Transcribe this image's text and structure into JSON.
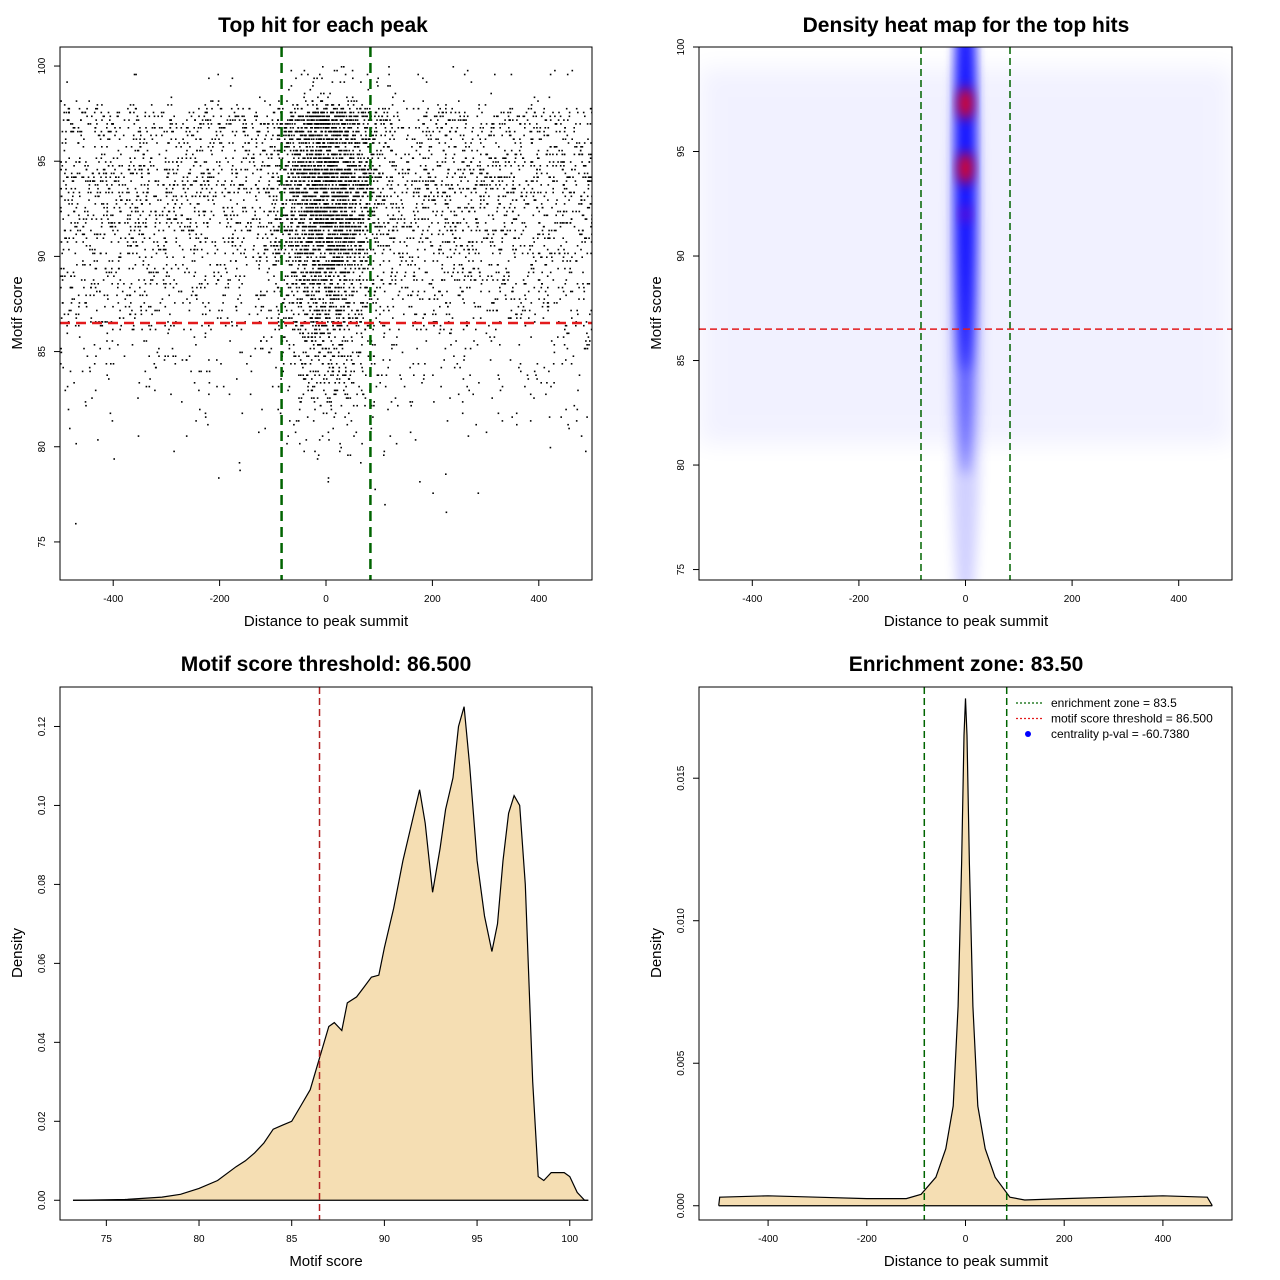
{
  "chart_data": [
    {
      "type": "scatter",
      "title": "Top hit for each peak",
      "xlabel": "Distance to peak summit",
      "ylabel": "Motif score",
      "xlim": [
        -500,
        500
      ],
      "ylim": [
        73,
        101
      ],
      "xticks": [
        -400,
        -200,
        0,
        200,
        400
      ],
      "yticks": [
        75,
        80,
        85,
        90,
        95,
        100
      ],
      "enrichment_zone": 83.5,
      "threshold": 86.5,
      "colors": {
        "points": "#000000",
        "zone": "#006400",
        "threshold": "#e31a1c"
      },
      "clusters": [
        {
          "x_center": 0,
          "x_spread": 500,
          "y_from": 74,
          "y_to": 100,
          "weight": "background"
        },
        {
          "x_center": 0,
          "x_spread": 45,
          "y_from": 79,
          "y_to": 100,
          "weight": "dense center"
        }
      ]
    },
    {
      "type": "heatmap",
      "title": "Density heat map for the top hits",
      "xlabel": "Distance to peak summit",
      "ylabel": "Motif score",
      "xlim": [
        -500,
        500
      ],
      "ylim": [
        74.5,
        100
      ],
      "xticks": [
        -400,
        -200,
        0,
        200,
        400
      ],
      "yticks": [
        75,
        80,
        85,
        90,
        95,
        100
      ],
      "enrichment_zone": 83.5,
      "threshold": 86.5,
      "hotspots": [
        {
          "x": 0,
          "y": 97.3,
          "level": "high"
        },
        {
          "x": 0,
          "y": 94.2,
          "level": "high"
        },
        {
          "x": 0,
          "y": 92.0,
          "level": "medium"
        }
      ],
      "colors": {
        "low": "#ffffff",
        "mid": "#0000ff",
        "high": "#ff0000",
        "zone": "#006400",
        "threshold": "#e31a1c"
      }
    },
    {
      "type": "area",
      "title": "Motif score threshold: 86.500",
      "xlabel": "Motif score",
      "ylabel": "Density",
      "xlim": [
        72.5,
        101.2
      ],
      "ylim": [
        -0.005,
        0.13
      ],
      "xticks": [
        75,
        80,
        85,
        90,
        95,
        100
      ],
      "yticks": [
        0.0,
        0.02,
        0.04,
        0.06,
        0.08,
        0.1,
        0.12
      ],
      "ytick_labels": [
        "0.00",
        "0.02",
        "0.04",
        "0.06",
        "0.08",
        "0.10",
        "0.12"
      ],
      "threshold": 86.5,
      "colors": {
        "fill": "#f5deb3",
        "line": "#000000",
        "threshold": "#b22222"
      },
      "x": [
        73.2,
        76,
        78,
        79,
        80,
        81,
        82,
        82.5,
        83,
        83.5,
        84,
        84.5,
        85,
        85.5,
        86,
        86.5,
        87,
        87.3,
        87.7,
        88,
        88.5,
        88.9,
        89.3,
        89.7,
        90,
        90.5,
        91,
        91.5,
        91.9,
        92.2,
        92.6,
        93,
        93.3,
        93.7,
        94.0,
        94.3,
        94.6,
        95,
        95.4,
        95.8,
        96.1,
        96.4,
        96.7,
        97,
        97.3,
        97.6,
        98,
        98.3,
        98.6,
        99,
        99.3,
        99.7,
        100,
        100.4,
        100.8,
        101
      ],
      "y": [
        0.0,
        0.0002,
        0.0008,
        0.0015,
        0.003,
        0.005,
        0.0085,
        0.01,
        0.012,
        0.0145,
        0.018,
        0.019,
        0.02,
        0.024,
        0.028,
        0.036,
        0.044,
        0.045,
        0.043,
        0.05,
        0.0515,
        0.054,
        0.0565,
        0.057,
        0.064,
        0.074,
        0.086,
        0.096,
        0.104,
        0.0955,
        0.078,
        0.089,
        0.099,
        0.107,
        0.12,
        0.125,
        0.11,
        0.086,
        0.072,
        0.063,
        0.07,
        0.086,
        0.098,
        0.1025,
        0.1,
        0.08,
        0.03,
        0.006,
        0.005,
        0.007,
        0.007,
        0.007,
        0.006,
        0.002,
        0.0,
        0.0
      ]
    },
    {
      "type": "area",
      "title": "Enrichment zone: 83.50",
      "xlabel": "Distance to peak summit",
      "ylabel": "Density",
      "xlim": [
        -540,
        540
      ],
      "ylim": [
        -0.0005,
        0.0182
      ],
      "xticks": [
        -400,
        -200,
        0,
        200,
        400
      ],
      "yticks": [
        0.0,
        0.005,
        0.01,
        0.015
      ],
      "ytick_labels": [
        "0.000",
        "0.005",
        "0.010",
        "0.015"
      ],
      "enrichment_zone": 83.5,
      "colors": {
        "fill": "#f5deb3",
        "line": "#000000",
        "zone": "#006400",
        "threshold": "#e31a1c",
        "pval": "#0000ff"
      },
      "x": [
        -500,
        -498,
        -400,
        -300,
        -200,
        -120,
        -90,
        -60,
        -40,
        -25,
        -15,
        -8,
        -3,
        0,
        3,
        8,
        15,
        25,
        40,
        60,
        90,
        120,
        200,
        300,
        400,
        490,
        500
      ],
      "y": [
        0.0,
        0.0003,
        0.00035,
        0.0003,
        0.00025,
        0.00025,
        0.0004,
        0.001,
        0.002,
        0.0035,
        0.007,
        0.012,
        0.0165,
        0.0178,
        0.0165,
        0.012,
        0.007,
        0.0035,
        0.002,
        0.001,
        0.0003,
        0.0002,
        0.00025,
        0.0003,
        0.00035,
        0.0003,
        0.0
      ],
      "legend": [
        {
          "label": "enrichment zone = 83.5",
          "kind": "dotted-line",
          "color": "#006400"
        },
        {
          "label": "motif score threshold = 86.500",
          "kind": "dotted-line",
          "color": "#e31a1c"
        },
        {
          "label": "centrality p-val = -60.7380",
          "kind": "point",
          "color": "#0000ff"
        }
      ]
    }
  ]
}
